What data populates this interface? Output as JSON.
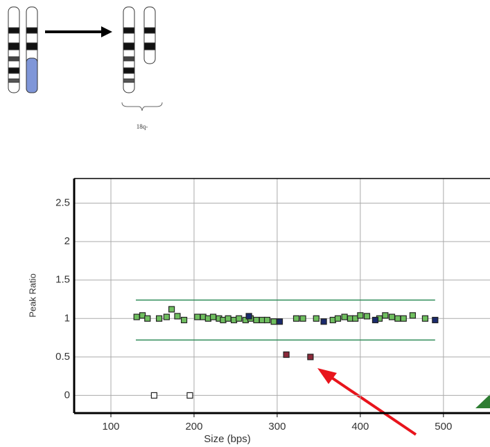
{
  "diagram": {
    "label": "18q-"
  },
  "chart_data": {
    "type": "scatter",
    "x_label": "Size (bps)",
    "y_label": "Peak Ratio",
    "xlim": [
      55.8,
      556
    ],
    "ylim": [
      -0.23,
      2.82
    ],
    "xticks": [
      100,
      200,
      300,
      400,
      500
    ],
    "yticks": [
      0,
      0.5,
      1,
      1.5,
      2,
      2.5
    ],
    "grid": true,
    "ref_lines": [
      {
        "y": 1.24,
        "x": [
          130,
          490
        ],
        "color": "#2e8b57"
      },
      {
        "y": 0.72,
        "x": [
          130,
          490
        ],
        "color": "#2e8b57"
      }
    ],
    "series": [
      {
        "color": "#6fbf5f",
        "x": [
          131,
          138,
          144,
          158,
          167,
          173,
          180,
          188,
          204,
          211,
          217,
          223,
          230,
          235,
          241,
          248,
          254,
          262,
          268,
          275,
          282,
          288,
          296,
          323,
          331,
          347,
          367,
          373,
          381,
          388,
          394,
          400,
          408,
          423,
          430,
          438,
          445,
          452,
          463,
          478
        ],
        "values": [
          1.02,
          1.04,
          1.0,
          1.0,
          1.02,
          1.12,
          1.03,
          0.98,
          1.02,
          1.02,
          1.0,
          1.02,
          1.0,
          0.98,
          1.0,
          0.98,
          1.0,
          0.98,
          1.0,
          0.98,
          0.98,
          0.98,
          0.96,
          1.0,
          1.0,
          1.0,
          0.98,
          1.0,
          1.02,
          1.0,
          1.0,
          1.04,
          1.03,
          1.0,
          1.04,
          1.02,
          1.0,
          1.0,
          1.04,
          1.0
        ]
      },
      {
        "color": "#1a2a6c",
        "x": [
          266,
          303,
          356,
          418,
          490
        ],
        "values": [
          1.03,
          0.96,
          0.96,
          0.98,
          0.98
        ]
      },
      {
        "color": "#8b2a3a",
        "x": [
          311,
          340
        ],
        "values": [
          0.53,
          0.5
        ]
      },
      {
        "color": "#ffffff",
        "x": [
          152,
          195
        ],
        "values": [
          0,
          0
        ]
      }
    ]
  }
}
